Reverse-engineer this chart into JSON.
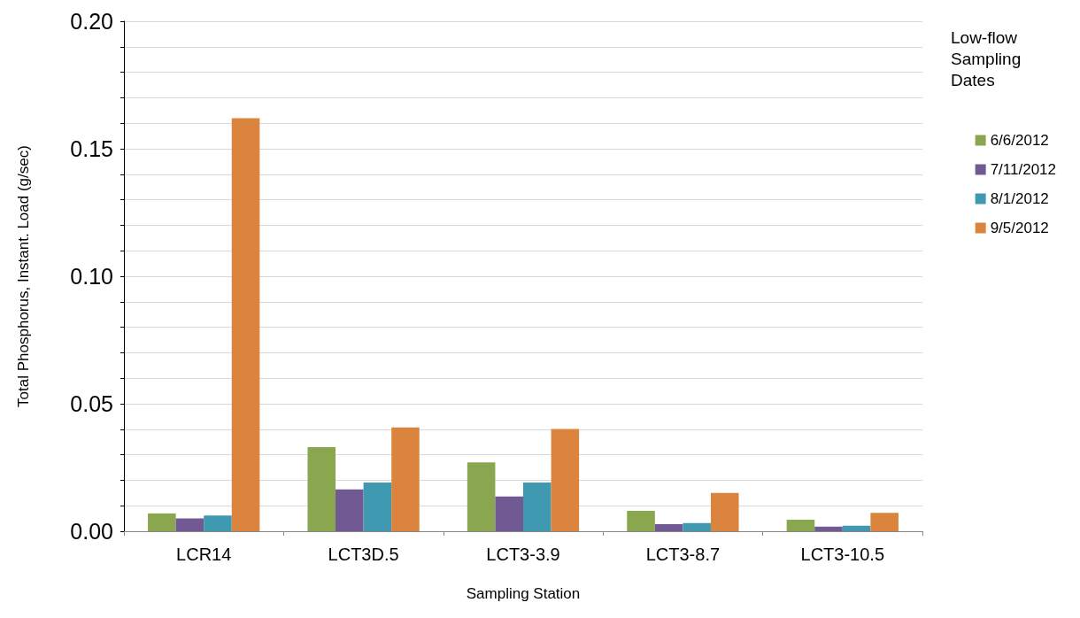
{
  "chart_data": {
    "type": "bar",
    "xlabel": "Sampling Station",
    "ylabel": "Total Phosphorus, Instant. Load (g/sec)",
    "legend_title": "Low-flow Sampling Dates",
    "legend": "right",
    "categories": [
      "LCR14",
      "LCT3D.5",
      "LCT3-3.9",
      "LCT3-8.7",
      "LCT3-10.5"
    ],
    "series": [
      {
        "name": "6/6/2012",
        "color": "#8aa64e",
        "values": [
          0.007,
          0.033,
          0.027,
          0.008,
          0.0045
        ]
      },
      {
        "name": "7/11/2012",
        "color": "#715a94",
        "values": [
          0.005,
          0.0164,
          0.0136,
          0.0028,
          0.0018
        ]
      },
      {
        "name": "8/1/2012",
        "color": "#3f99b0",
        "values": [
          0.0062,
          0.0191,
          0.0191,
          0.0032,
          0.0022
        ]
      },
      {
        "name": "9/5/2012",
        "color": "#db843d",
        "values": [
          0.162,
          0.0407,
          0.0401,
          0.015,
          0.0072
        ]
      }
    ],
    "ylim": [
      0,
      0.2
    ],
    "yticks": [
      {
        "value": 0,
        "label": "0.00"
      },
      {
        "value": 0.01,
        "label": null
      },
      {
        "value": 0.02,
        "label": null
      },
      {
        "value": 0.03,
        "label": null
      },
      {
        "value": 0.04,
        "label": null
      },
      {
        "value": 0.05,
        "label": "0.05"
      },
      {
        "value": 0.06,
        "label": null
      },
      {
        "value": 0.07,
        "label": null
      },
      {
        "value": 0.08,
        "label": null
      },
      {
        "value": 0.09,
        "label": null
      },
      {
        "value": 0.1,
        "label": "0.10"
      },
      {
        "value": 0.11,
        "label": null
      },
      {
        "value": 0.12,
        "label": null
      },
      {
        "value": 0.13,
        "label": null
      },
      {
        "value": 0.14,
        "label": null
      },
      {
        "value": 0.15,
        "label": "0.15"
      },
      {
        "value": 0.16,
        "label": null
      },
      {
        "value": 0.17,
        "label": null
      },
      {
        "value": 0.18,
        "label": null
      },
      {
        "value": 0.19,
        "label": null
      },
      {
        "value": 0.2,
        "label": "0.20"
      }
    ],
    "grid": "y"
  }
}
